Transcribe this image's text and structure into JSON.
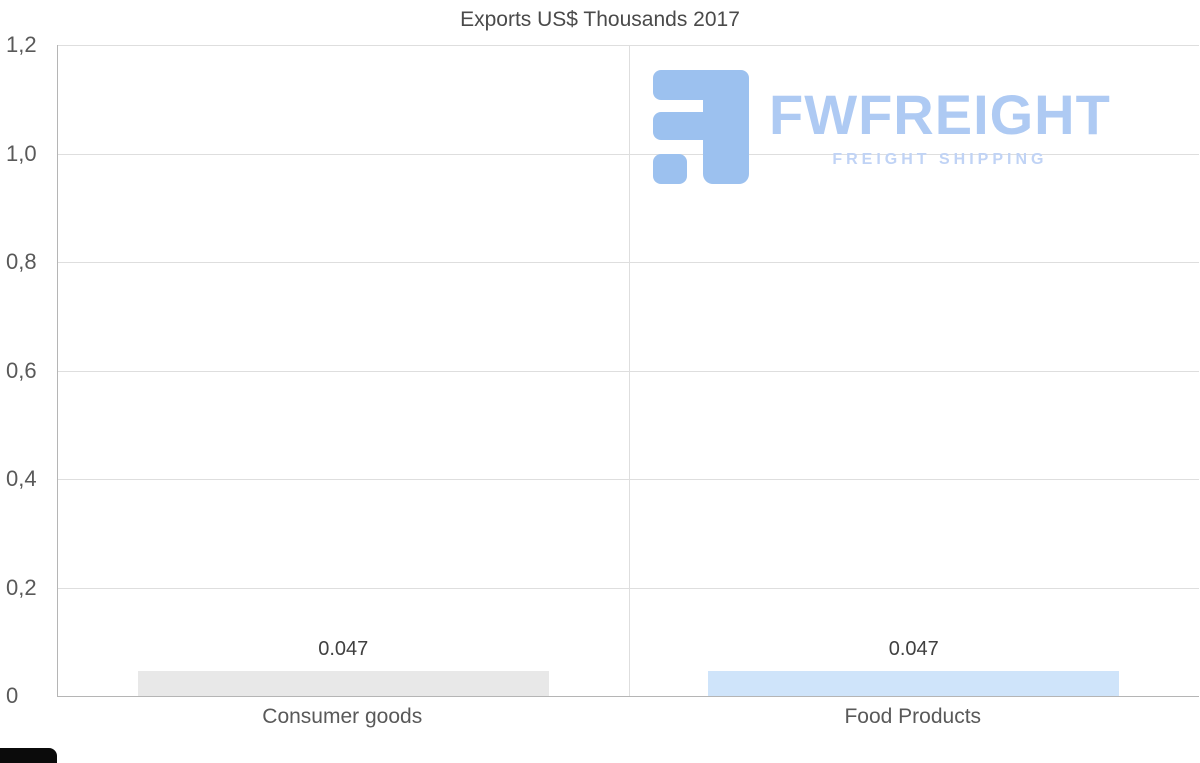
{
  "chart_data": {
    "type": "bar",
    "title": "Exports US$ Thousands 2017",
    "categories": [
      "Consumer goods",
      "Food Products"
    ],
    "values": [
      0.047,
      0.047
    ],
    "value_labels": [
      "0.047",
      "0.047"
    ],
    "bar_colors": [
      "#e8e8e8",
      "#cfe4fa"
    ],
    "ylim": [
      0,
      1.2
    ],
    "ytick_values": [
      0,
      0.2,
      0.4,
      0.6,
      0.8,
      1.0,
      1.2
    ],
    "ytick_labels": [
      "0",
      "0,2",
      "0,4",
      "0,6",
      "0,8",
      "1,0",
      "1,2"
    ],
    "grid": true,
    "legend": false,
    "xlabel": "",
    "ylabel": ""
  },
  "watermark": {
    "brand": "FWFREIGHT",
    "tagline": "FREIGHT SHIPPING",
    "brand_color": "#aecaf3",
    "tagline_color": "#c0d3f5",
    "icon_color": "#9cc1ef"
  },
  "style": {
    "grid_color": "#dedede",
    "axis_color": "#b5b5b5",
    "title_color": "#4a4a4a",
    "tick_color": "#595959",
    "value_color": "#404040"
  }
}
